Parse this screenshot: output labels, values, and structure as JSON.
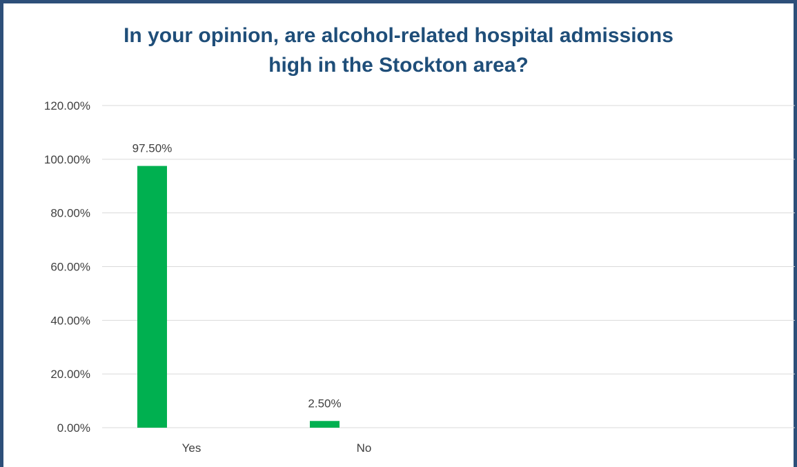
{
  "chart_data": {
    "type": "bar",
    "title_lines": [
      "In your opinion, are alcohol-related hospital admissions",
      "high in the Stockton area?"
    ],
    "categories": [
      "Yes",
      "No"
    ],
    "values": [
      97.5,
      2.5
    ],
    "data_labels": [
      "97.50%",
      "2.50%"
    ],
    "ylim": [
      0,
      120
    ],
    "yticks": [
      0,
      20,
      40,
      60,
      80,
      100,
      120
    ],
    "ytick_labels": [
      "0.00%",
      "20.00%",
      "40.00%",
      "60.00%",
      "80.00%",
      "100.00%",
      "120.00%"
    ],
    "grid": true,
    "legend": "none",
    "bar_color": "#00b050",
    "title_color": "#1f4e79",
    "frame_color": "#2d4f79",
    "gridline_color": "#d9d9d9"
  }
}
